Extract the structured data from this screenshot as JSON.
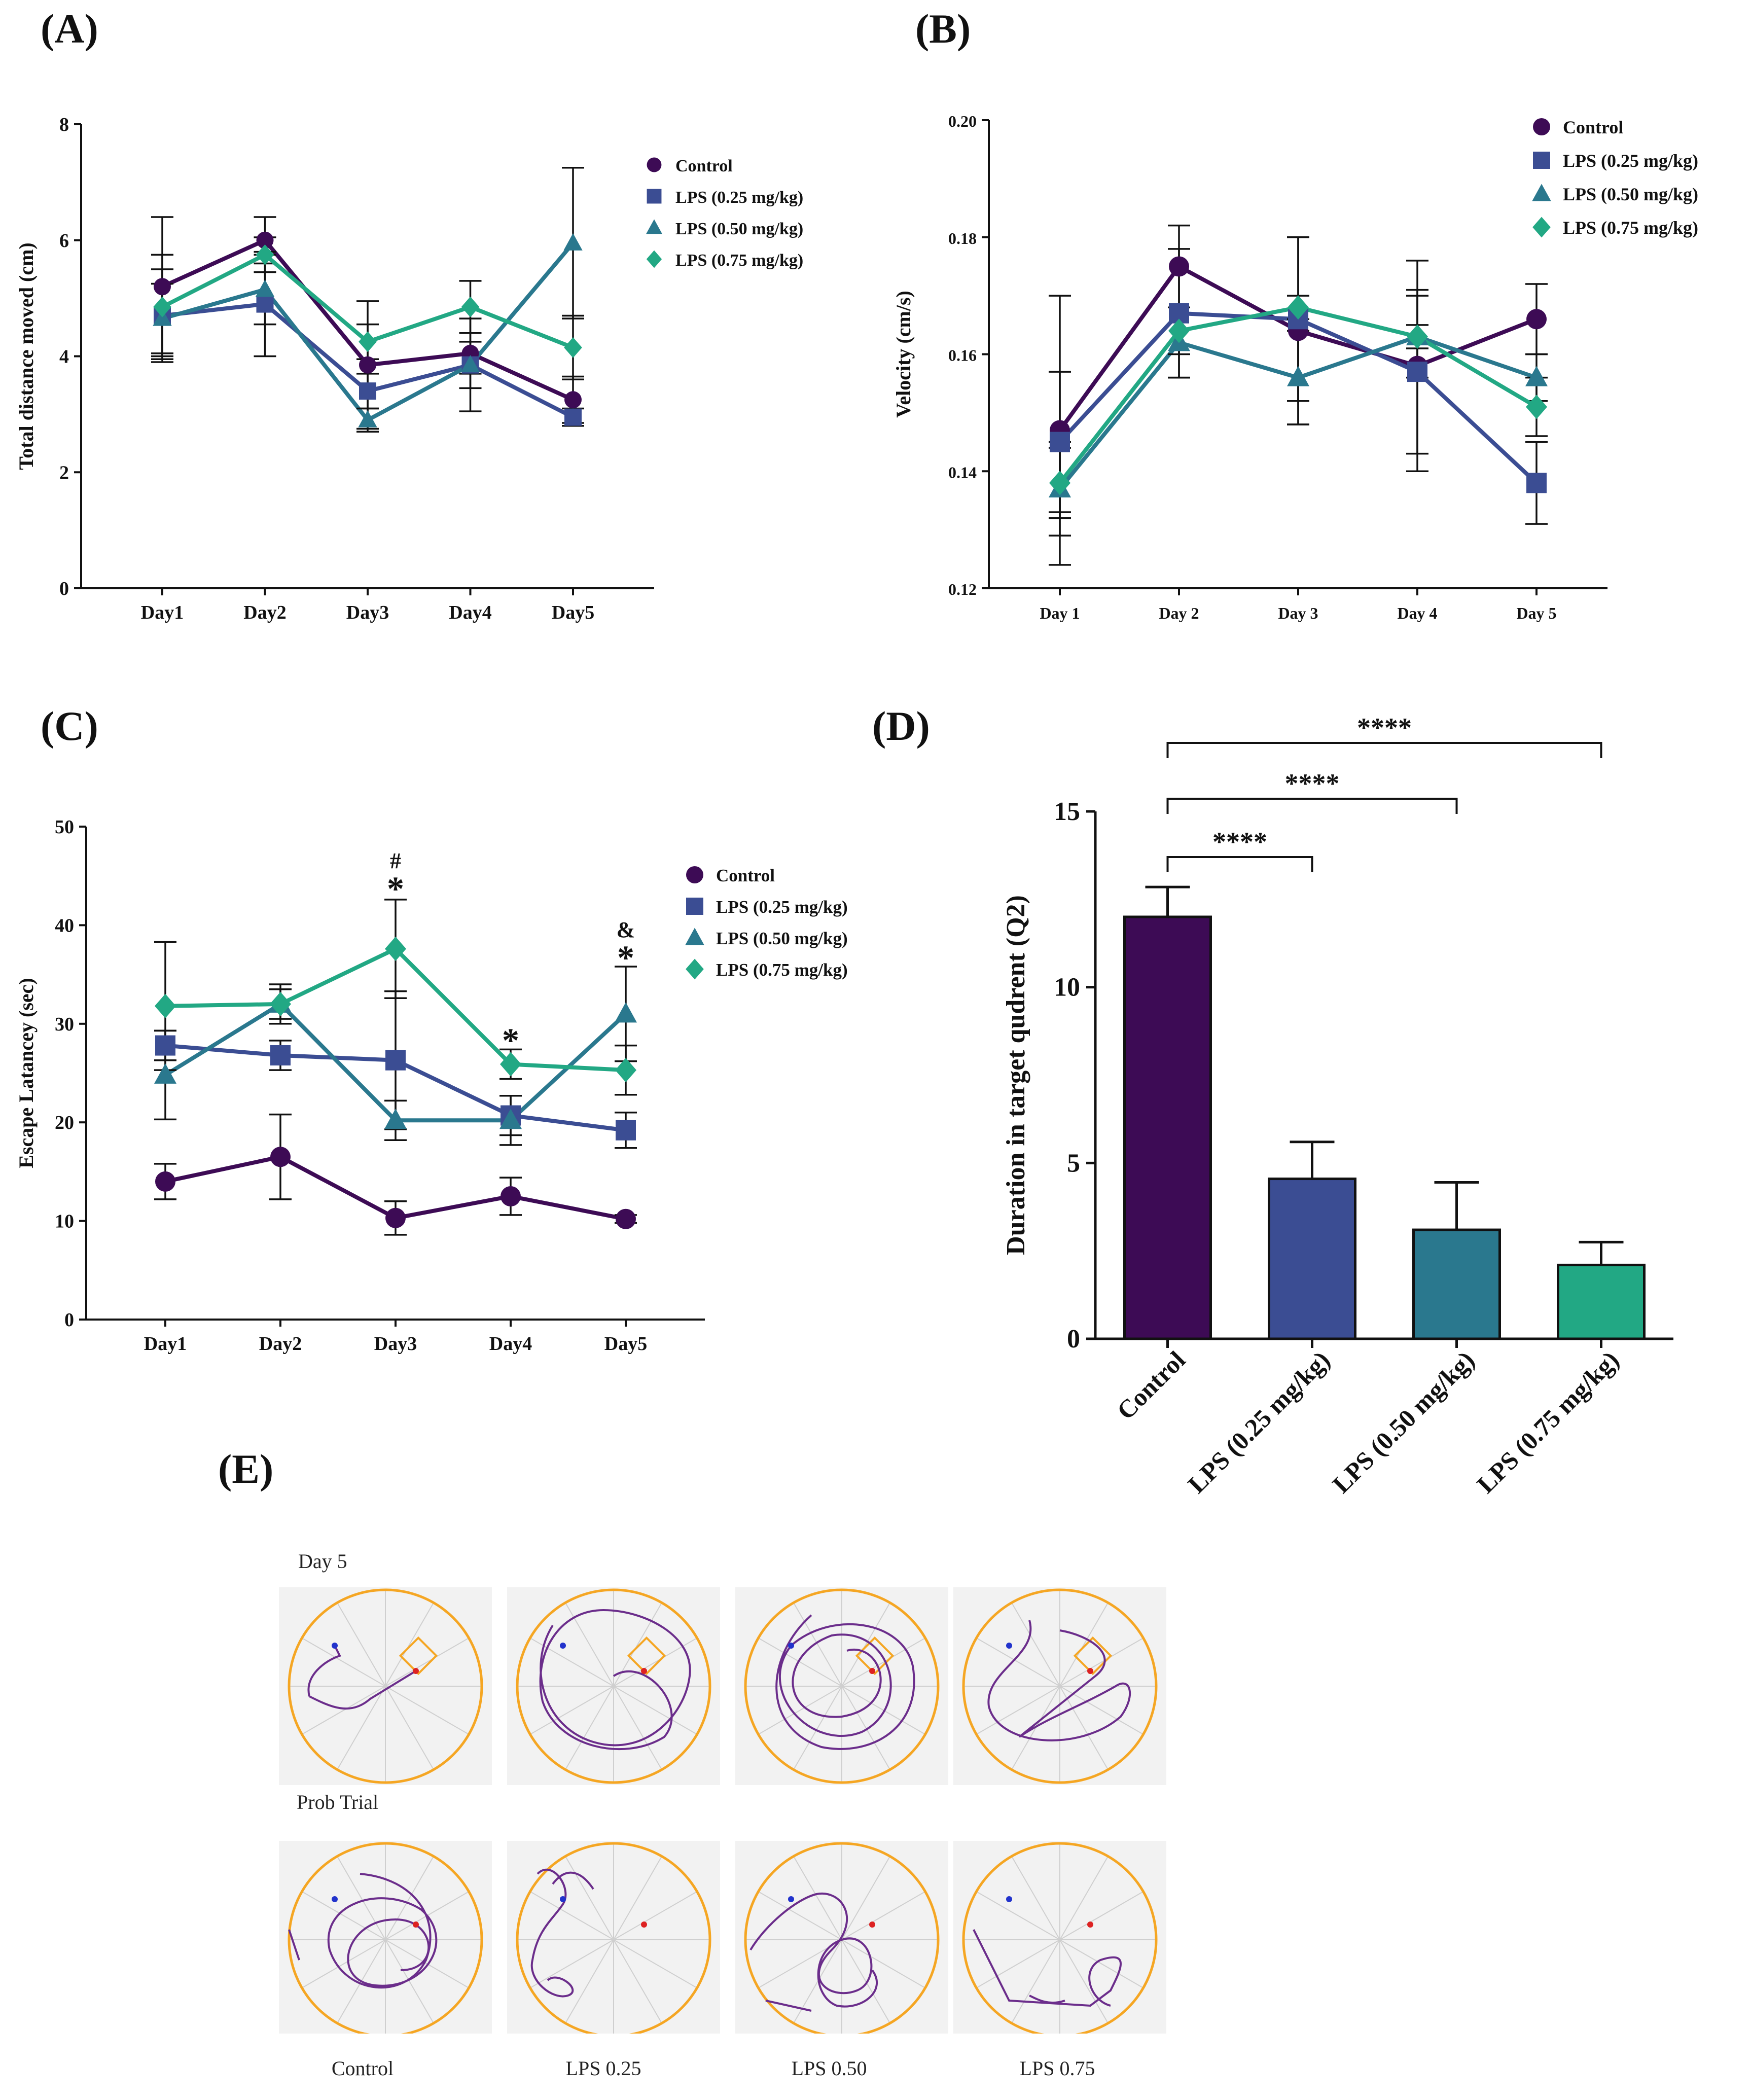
{
  "panels": {
    "A": "(A)",
    "B": "(B)",
    "C": "(C)",
    "D": "(D)",
    "E": "(E)"
  },
  "colors": {
    "Control": "#3d0b55",
    "LPS (0.25 mg/kg)": "#3b4d93",
    "LPS (0.50 mg/kg)": "#2a788e",
    "LPS (0.75 mg/kg)": "#22a884",
    "arena": "#f5a623",
    "track": "#6b2d8b"
  },
  "chart_data": [
    {
      "id": "A",
      "type": "line",
      "ylabel": "Total distance moved (cm)",
      "xlabel": "",
      "categories": [
        "Day1",
        "Day2",
        "Day3",
        "Day4",
        "Day5"
      ],
      "ylim": [
        0,
        8
      ],
      "yticks": [
        0,
        2,
        4,
        6,
        8
      ],
      "series": [
        {
          "name": "Control",
          "marker": "circle",
          "values": [
            5.2,
            6.0,
            3.85,
            4.05,
            3.25
          ],
          "err": [
            1.2,
            0.4,
            1.1,
            0.35,
            0.4
          ]
        },
        {
          "name": "LPS (0.25 mg/kg)",
          "marker": "square",
          "values": [
            4.7,
            4.9,
            3.4,
            3.85,
            2.95
          ],
          "err": [
            0.8,
            0.9,
            0.3,
            0.8,
            0.15
          ]
        },
        {
          "name": "LPS (0.50 mg/kg)",
          "marker": "triangle",
          "values": [
            4.65,
            5.15,
            2.9,
            3.85,
            5.95
          ],
          "err": [
            0.6,
            0.6,
            0.2,
            0.4,
            1.3
          ]
        },
        {
          "name": "LPS (0.75 mg/kg)",
          "marker": "diamond",
          "values": [
            4.85,
            5.75,
            4.25,
            4.85,
            4.15
          ],
          "err": [
            0.9,
            0.3,
            0.3,
            0.45,
            0.55
          ]
        }
      ]
    },
    {
      "id": "B",
      "type": "line",
      "ylabel": "Velocity (cm/s)",
      "xlabel": "",
      "categories": [
        "Day 1",
        "Day 2",
        "Day 3",
        "Day 4",
        "Day 5"
      ],
      "ylim": [
        0.12,
        0.2
      ],
      "yticks": [
        "0.12",
        "0.14",
        "0.16",
        "0.18",
        "0.20"
      ],
      "series": [
        {
          "name": "Control",
          "marker": "circle",
          "values": [
            0.147,
            0.175,
            0.164,
            0.158,
            0.166
          ],
          "err": [
            0.023,
            0.007,
            0.016,
            0.018,
            0.006
          ]
        },
        {
          "name": "LPS (0.25 mg/kg)",
          "marker": "square",
          "values": [
            0.145,
            0.167,
            0.166,
            0.157,
            0.138
          ],
          "err": [
            0.012,
            0.011,
            0.014,
            0.014,
            0.007
          ]
        },
        {
          "name": "LPS (0.50 mg/kg)",
          "marker": "triangle",
          "values": [
            0.137,
            0.162,
            0.156,
            0.163,
            0.156
          ],
          "err": [
            0.008,
            0.006,
            0.008,
            0.007,
            0.004
          ]
        },
        {
          "name": "LPS (0.75 mg/kg)",
          "marker": "diamond",
          "values": [
            0.138,
            0.164,
            0.168,
            0.163,
            0.151
          ],
          "err": [
            0.006,
            0.004,
            0.002,
            0.002,
            0.005
          ]
        }
      ]
    },
    {
      "id": "C",
      "type": "line",
      "ylabel": "Escape Latancey (sec)",
      "xlabel": "",
      "categories": [
        "Day1",
        "Day2",
        "Day3",
        "Day4",
        "Day5"
      ],
      "ylim": [
        0,
        50
      ],
      "yticks": [
        0,
        10,
        20,
        30,
        40,
        50
      ],
      "series": [
        {
          "name": "Control",
          "marker": "circle",
          "values": [
            14.0,
            16.5,
            10.3,
            12.5,
            10.2
          ],
          "err": [
            1.8,
            4.3,
            1.7,
            1.9,
            0.4
          ]
        },
        {
          "name": "LPS (0.25 mg/kg)",
          "marker": "square",
          "values": [
            27.8,
            26.8,
            26.3,
            20.7,
            19.2
          ],
          "err": [
            1.5,
            1.5,
            7.0,
            2.0,
            1.8
          ]
        },
        {
          "name": "LPS (0.50 mg/kg)",
          "marker": "triangle",
          "values": [
            24.8,
            32.0,
            20.2,
            20.2,
            31.0
          ],
          "err": [
            4.5,
            2.0,
            2.0,
            2.5,
            4.8
          ]
        },
        {
          "name": "LPS (0.75 mg/kg)",
          "marker": "diamond",
          "values": [
            31.8,
            32.0,
            37.6,
            25.9,
            25.3
          ],
          "err": [
            6.5,
            1.5,
            5.0,
            1.5,
            2.5
          ]
        }
      ],
      "annotations": [
        {
          "day": 2,
          "text": "#",
          "value": 46.5
        },
        {
          "day": 2,
          "text": "*",
          "value": 44.2
        },
        {
          "day": 3,
          "text": "*",
          "value": 28.8
        },
        {
          "day": 4,
          "text": "&",
          "value": 39.5
        },
        {
          "day": 4,
          "text": "*",
          "value": 37.2
        }
      ]
    },
    {
      "id": "D",
      "type": "bar",
      "ylabel": "Duration in target qudrent (Q2)",
      "xlabel": "",
      "categories": [
        "Control",
        "LPS (0.25 mg/kg)",
        "LPS (0.50 mg/kg)",
        "LPS (0.75 mg/kg)"
      ],
      "values": [
        12.0,
        4.55,
        3.1,
        2.1
      ],
      "err": [
        0.85,
        1.05,
        1.35,
        0.65
      ],
      "ylim": [
        0,
        15
      ],
      "yticks": [
        0,
        5,
        10,
        15
      ],
      "significance": [
        {
          "from": 0,
          "to": 1,
          "label": "****"
        },
        {
          "from": 0,
          "to": 2,
          "label": "****"
        },
        {
          "from": 0,
          "to": 3,
          "label": "****"
        }
      ]
    }
  ],
  "panelE": {
    "row_labels": [
      "Day 5",
      "Prob Trial"
    ],
    "col_labels": [
      "Control",
      "LPS 0.25",
      "LPS 0.50",
      "LPS 0.75"
    ]
  }
}
